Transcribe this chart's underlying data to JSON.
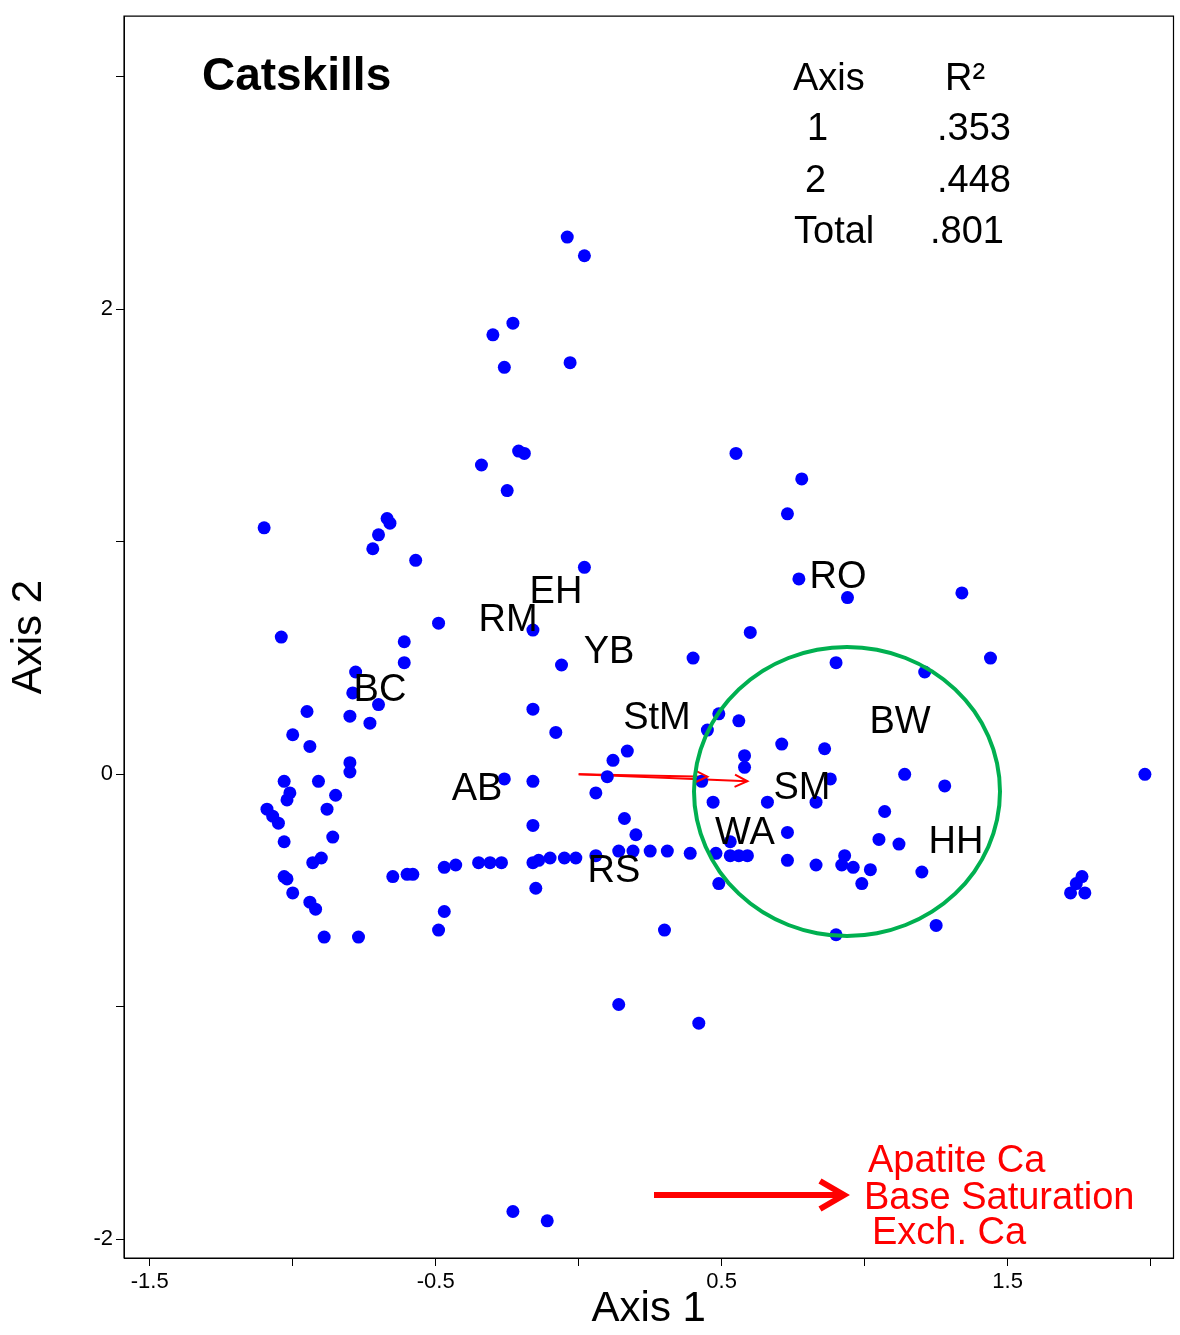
{
  "chart_data": {
    "type": "scatter",
    "title": "Catskills",
    "xlabel": "Axis 1",
    "ylabel": "Axis 2",
    "marker": "circle",
    "legend": false,
    "grid": false,
    "xlim": [
      -1.59,
      2.08
    ],
    "ylim": [
      -2.08,
      3.26
    ],
    "xticks": [
      -1.5,
      {
        "value": -1,
        "label": null
      },
      -0.5,
      {
        "value": 0,
        "label": null
      },
      0.5,
      {
        "value": 1,
        "label": null
      },
      1.5,
      {
        "value": 2,
        "label": null
      }
    ],
    "yticks": [
      {
        "value": 3,
        "label": null
      },
      2,
      {
        "value": 1,
        "label": null
      },
      0,
      {
        "value": -1,
        "label": null
      },
      -2
    ],
    "series": [
      {
        "color": "#0000ff",
        "x": [
          -0.04,
          0.02,
          -0.23,
          -0.3,
          -0.03,
          -0.26,
          0.55,
          -0.21,
          -0.19,
          -0.34,
          0.78,
          -0.25,
          0.73,
          -1.1,
          -0.67,
          -0.66,
          -0.7,
          -0.72,
          0.02,
          -0.57,
          0.77,
          0.94,
          1.34,
          -0.49,
          -0.16,
          -1.04,
          0.6,
          -0.61,
          0.4,
          1.44,
          -0.06,
          -0.61,
          0.9,
          1.21,
          -0.78,
          -0.79,
          -0.7,
          -0.95,
          -0.16,
          -0.8,
          -0.73,
          0.49,
          0.56,
          -1.0,
          -0.08,
          0.45,
          0.71,
          -0.94,
          0.86,
          0.17,
          0.58,
          0.12,
          -0.8,
          -0.8,
          -1.03,
          -0.91,
          -0.26,
          -0.16,
          0.1,
          0.43,
          0.58,
          0.88,
          1.14,
          1.98,
          1.28,
          -1.01,
          -1.02,
          -0.85,
          0.06,
          0.47,
          0.66,
          0.83,
          -1.09,
          -0.88,
          -1.07,
          -1.05,
          0.16,
          1.07,
          -0.16,
          0.73,
          -1.03,
          -0.86,
          0.2,
          1.05,
          1.12,
          0.53,
          -0.9,
          -0.93,
          -0.65,
          -0.6,
          -0.58,
          -0.47,
          -0.43,
          -0.35,
          -0.31,
          -0.27,
          -0.16,
          -0.14,
          -0.1,
          -0.05,
          -0.01,
          0.06,
          0.14,
          0.19,
          0.25,
          0.31,
          0.39,
          0.48,
          0.53,
          0.56,
          0.59,
          0.73,
          0.83,
          0.93,
          0.92,
          0.96,
          1.02,
          0.99,
          1.2,
          -1.03,
          -1.02,
          -1.0,
          -0.15,
          0.49,
          -0.94,
          -0.92,
          -0.47,
          -0.89,
          -0.77,
          -0.49,
          0.3,
          0.9,
          1.25,
          1.76,
          1.74,
          1.72,
          1.77,
          0.14,
          0.42,
          -0.23,
          -0.11
        ],
        "values": [
          2.31,
          2.23,
          1.94,
          1.89,
          1.77,
          1.75,
          1.38,
          1.39,
          1.38,
          1.33,
          1.27,
          1.22,
          1.12,
          1.06,
          1.1,
          1.08,
          1.03,
          0.97,
          0.89,
          0.92,
          0.84,
          0.76,
          0.78,
          0.65,
          0.62,
          0.59,
          0.61,
          0.57,
          0.5,
          0.5,
          0.47,
          0.48,
          0.48,
          0.44,
          0.44,
          0.35,
          0.3,
          0.27,
          0.28,
          0.25,
          0.22,
          0.26,
          0.23,
          0.17,
          0.18,
          0.19,
          0.13,
          0.12,
          0.11,
          0.1,
          0.08,
          0.06,
          0.05,
          0.01,
          -0.03,
          -0.03,
          -0.02,
          -0.03,
          -0.01,
          -0.03,
          0.03,
          -0.02,
          0,
          0,
          -0.05,
          -0.08,
          -0.11,
          -0.09,
          -0.08,
          -0.12,
          -0.12,
          -0.12,
          -0.15,
          -0.15,
          -0.18,
          -0.21,
          -0.19,
          -0.16,
          -0.22,
          -0.25,
          -0.29,
          -0.27,
          -0.26,
          -0.28,
          -0.3,
          -0.29,
          -0.36,
          -0.38,
          -0.44,
          -0.43,
          -0.43,
          -0.4,
          -0.39,
          -0.38,
          -0.38,
          -0.38,
          -0.38,
          -0.37,
          -0.36,
          -0.36,
          -0.36,
          -0.35,
          -0.33,
          -0.33,
          -0.33,
          -0.33,
          -0.34,
          -0.34,
          -0.35,
          -0.35,
          -0.35,
          -0.37,
          -0.39,
          -0.35,
          -0.39,
          -0.4,
          -0.41,
          -0.47,
          -0.42,
          -0.44,
          -0.45,
          -0.51,
          -0.49,
          -0.47,
          -0.55,
          -0.58,
          -0.59,
          -0.7,
          -0.7,
          -0.67,
          -0.67,
          -0.69,
          -0.65,
          -0.44,
          -0.47,
          -0.51,
          -0.51,
          -0.99,
          -1.07,
          -1.88,
          -1.92
        ]
      },
      {
        "type": "line",
        "color": "#ff0000",
        "marker": "none",
        "x": [
          0,
          0.45
        ],
        "values": [
          0,
          -0.01
        ]
      },
      {
        "type": "line",
        "color": "#ff0000",
        "marker": "none",
        "x": [
          0,
          0.59
        ],
        "values": [
          0,
          -0.03
        ]
      }
    ],
    "annotations": [
      "Axis",
      "R²",
      "1",
      ".353",
      "2",
      ".448",
      "Total",
      ".801",
      "RO",
      "EH",
      "RM",
      "YB",
      "BC",
      "StM",
      "BW",
      "AB",
      "SM",
      "WA",
      "HH",
      "RS",
      "Apatite Ca",
      "Base Saturation",
      "Exch. Ca"
    ]
  }
}
